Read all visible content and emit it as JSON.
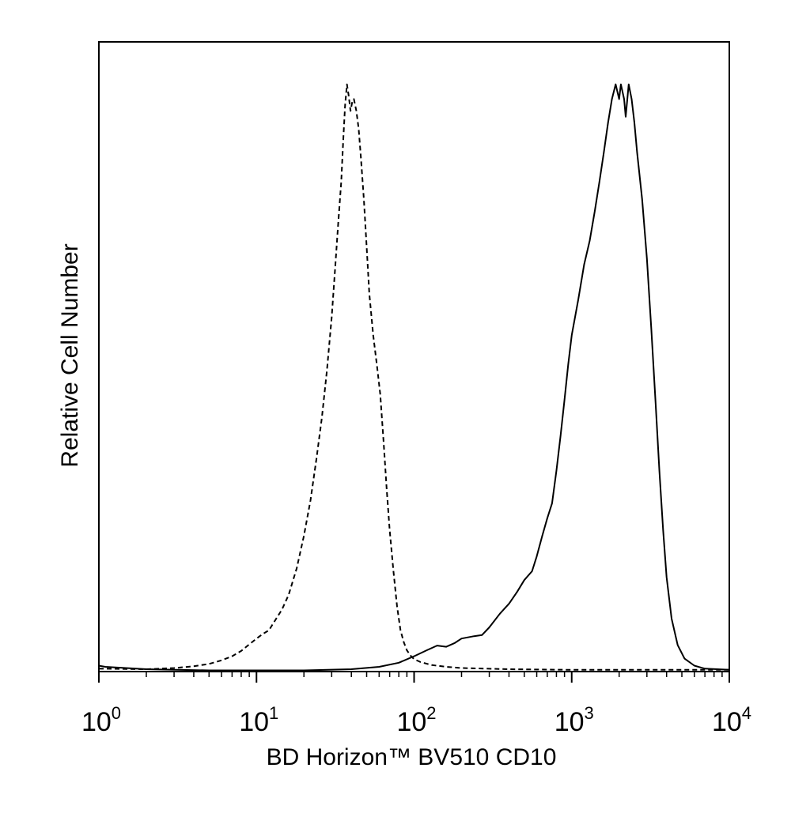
{
  "chart_data": {
    "type": "line",
    "title": "",
    "xlabel": "BD Horizon™ BV510 CD10",
    "ylabel": "Relative Cell Number",
    "xscale": "log10",
    "xlim": [
      1,
      10000
    ],
    "ylim": [
      0,
      100
    ],
    "grid": false,
    "legend": "none",
    "x_ticks": [
      {
        "base": "10",
        "exp": "0",
        "value": 1
      },
      {
        "base": "10",
        "exp": "1",
        "value": 10
      },
      {
        "base": "10",
        "exp": "2",
        "value": 100
      },
      {
        "base": "10",
        "exp": "3",
        "value": 1000
      },
      {
        "base": "10",
        "exp": "4",
        "value": 10000
      }
    ],
    "series": [
      {
        "style": "dashed",
        "color": "#000000",
        "points": [
          [
            1.0,
            0.5
          ],
          [
            2.0,
            0.4
          ],
          [
            3.0,
            0.6
          ],
          [
            4.0,
            0.9
          ],
          [
            5.0,
            1.3
          ],
          [
            6.0,
            1.9
          ],
          [
            7.0,
            2.6
          ],
          [
            8.0,
            3.5
          ],
          [
            9.0,
            4.6
          ],
          [
            10.0,
            5.6
          ],
          [
            11.0,
            6.4
          ],
          [
            12.0,
            7.0
          ],
          [
            13.0,
            8.5
          ],
          [
            14.5,
            10.5
          ],
          [
            16.0,
            13.0
          ],
          [
            18.0,
            17.5
          ],
          [
            20.0,
            23.0
          ],
          [
            22.0,
            29.0
          ],
          [
            24.0,
            36.0
          ],
          [
            26.0,
            43.0
          ],
          [
            28.0,
            51.0
          ],
          [
            30.0,
            60.0
          ],
          [
            31.5,
            68.0
          ],
          [
            33.0,
            76.0
          ],
          [
            34.5,
            83.0
          ],
          [
            35.5,
            90.0
          ],
          [
            36.5,
            96.0
          ],
          [
            37.5,
            99.5
          ],
          [
            38.5,
            97.5
          ],
          [
            39.5,
            95.0
          ],
          [
            40.5,
            96.5
          ],
          [
            41.5,
            97.0
          ],
          [
            43.0,
            95.0
          ],
          [
            44.5,
            92.0
          ],
          [
            46.0,
            87.0
          ],
          [
            48.0,
            80.0
          ],
          [
            50.0,
            72.0
          ],
          [
            52.0,
            64.0
          ],
          [
            55.0,
            57.0
          ],
          [
            58.0,
            52.0
          ],
          [
            61.0,
            47.0
          ],
          [
            64.0,
            39.0
          ],
          [
            67.0,
            31.0
          ],
          [
            70.0,
            24.0
          ],
          [
            74.0,
            17.0
          ],
          [
            78.0,
            11.0
          ],
          [
            82.0,
            7.0
          ],
          [
            86.0,
            5.0
          ],
          [
            90.0,
            3.6
          ],
          [
            95.0,
            2.7
          ],
          [
            100.0,
            2.1
          ],
          [
            110.0,
            1.6
          ],
          [
            130.0,
            1.1
          ],
          [
            160.0,
            0.8
          ],
          [
            200.0,
            0.6
          ],
          [
            400.0,
            0.4
          ],
          [
            1000.0,
            0.3
          ],
          [
            3000.0,
            0.3
          ],
          [
            10000.0,
            0.3
          ]
        ]
      },
      {
        "style": "solid",
        "color": "#000000",
        "points": [
          [
            1.0,
            1.0
          ],
          [
            1.1,
            0.8
          ],
          [
            2.0,
            0.4
          ],
          [
            5.0,
            0.2
          ],
          [
            10.0,
            0.2
          ],
          [
            20.0,
            0.2
          ],
          [
            40.0,
            0.4
          ],
          [
            60.0,
            0.8
          ],
          [
            80.0,
            1.5
          ],
          [
            100.0,
            2.6
          ],
          [
            120.0,
            3.6
          ],
          [
            140.0,
            4.4
          ],
          [
            160.0,
            4.2
          ],
          [
            180.0,
            4.8
          ],
          [
            200.0,
            5.6
          ],
          [
            240.0,
            6.0
          ],
          [
            270.0,
            6.2
          ],
          [
            300.0,
            7.5
          ],
          [
            350.0,
            9.8
          ],
          [
            400.0,
            11.5
          ],
          [
            450.0,
            13.5
          ],
          [
            500.0,
            15.5
          ],
          [
            560.0,
            17.0
          ],
          [
            600.0,
            19.5
          ],
          [
            650.0,
            23.0
          ],
          [
            700.0,
            26.0
          ],
          [
            750.0,
            28.5
          ],
          [
            800.0,
            34.0
          ],
          [
            850.0,
            40.0
          ],
          [
            900.0,
            46.0
          ],
          [
            950.0,
            52.0
          ],
          [
            1000.0,
            57.0
          ],
          [
            1100.0,
            63.0
          ],
          [
            1200.0,
            69.0
          ],
          [
            1300.0,
            73.0
          ],
          [
            1400.0,
            78.0
          ],
          [
            1500.0,
            83.0
          ],
          [
            1600.0,
            88.0
          ],
          [
            1700.0,
            93.0
          ],
          [
            1800.0,
            97.0
          ],
          [
            1900.0,
            99.5
          ],
          [
            2000.0,
            97.0
          ],
          [
            2050.0,
            99.5
          ],
          [
            2150.0,
            97.0
          ],
          [
            2200.0,
            94.0
          ],
          [
            2300.0,
            99.5
          ],
          [
            2400.0,
            97.0
          ],
          [
            2500.0,
            93.0
          ],
          [
            2600.0,
            88.0
          ],
          [
            2800.0,
            80.0
          ],
          [
            3000.0,
            70.0
          ],
          [
            3200.0,
            58.0
          ],
          [
            3400.0,
            46.0
          ],
          [
            3600.0,
            34.0
          ],
          [
            3800.0,
            24.0
          ],
          [
            4000.0,
            16.0
          ],
          [
            4300.0,
            9.0
          ],
          [
            4700.0,
            4.5
          ],
          [
            5200.0,
            2.2
          ],
          [
            6000.0,
            1.0
          ],
          [
            7000.0,
            0.5
          ],
          [
            10000.0,
            0.3
          ]
        ]
      }
    ]
  }
}
